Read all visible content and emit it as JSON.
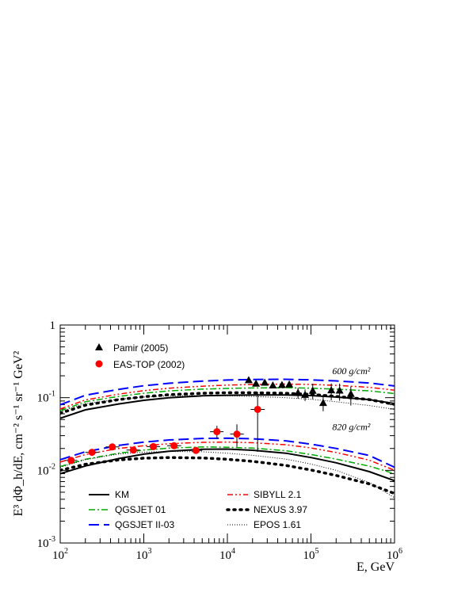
{
  "chart_data": {
    "type": "line",
    "xlabel": "E, GeV",
    "ylabel": "E³ dΦ_h/dE,  cm⁻² s⁻¹ sr⁻¹ GeV²",
    "x_scale": "log",
    "y_scale": "log",
    "xlim": [
      100,
      1000000
    ],
    "ylim": [
      0.001,
      1
    ],
    "x_ticks": [
      {
        "value": 100,
        "base": "10",
        "exp": "2"
      },
      {
        "value": 1000,
        "base": "10",
        "exp": "3"
      },
      {
        "value": 10000,
        "base": "10",
        "exp": "4"
      },
      {
        "value": 100000,
        "base": "10",
        "exp": "5"
      },
      {
        "value": 1000000,
        "base": "10",
        "exp": "6"
      }
    ],
    "y_ticks": [
      {
        "value": 0.001,
        "base": "10",
        "exp": "-3"
      },
      {
        "value": 0.01,
        "base": "10",
        "exp": "-2"
      },
      {
        "value": 0.1,
        "base": "10",
        "exp": "-1"
      },
      {
        "value": 1,
        "base": "1",
        "exp": ""
      }
    ],
    "annotations": [
      {
        "text": "600 g/cm²",
        "x": 180000,
        "y": 0.21
      },
      {
        "text": "820 g/cm²",
        "x": 180000,
        "y": 0.036
      }
    ],
    "legend": {
      "markers": [
        {
          "name": "Pamir (2005)",
          "symbol": "triangle",
          "color": "#000000"
        },
        {
          "name": "EAS-TOP (2002)",
          "symbol": "circle",
          "color": "#ff0000"
        }
      ],
      "lines": [
        {
          "name": "KM",
          "color": "#000000",
          "dash": "solid",
          "width": 2
        },
        {
          "name": "QGSJET 01",
          "color": "#00aa00",
          "dash": "8,3,2,3",
          "width": 1.5
        },
        {
          "name": "QGSJET II-03",
          "color": "#0000ff",
          "dash": "13,6",
          "width": 2
        },
        {
          "name": "SIBYLL 2.1",
          "color": "#ff0000",
          "dash": "7,3,2,3,2,3",
          "width": 1.5
        },
        {
          "name": "NEXUS 3.97",
          "color": "#000000",
          "dash": "2,6",
          "width": 3.5
        },
        {
          "name": "EPOS 1.61",
          "color": "#000000",
          "dash": "1,2",
          "width": 1
        }
      ]
    },
    "x_grid": [
      100,
      200,
      500,
      1000,
      2000,
      5000,
      10000,
      20000,
      50000,
      100000,
      200000,
      500000,
      1000000
    ],
    "series": [
      {
        "group": "600",
        "style": "KM",
        "values": [
          0.052,
          0.068,
          0.082,
          0.092,
          0.1,
          0.106,
          0.108,
          0.109,
          0.109,
          0.107,
          0.102,
          0.094,
          0.083
        ]
      },
      {
        "group": "600",
        "style": "QGSJET 01",
        "values": [
          0.066,
          0.088,
          0.104,
          0.115,
          0.124,
          0.131,
          0.134,
          0.136,
          0.137,
          0.135,
          0.131,
          0.124,
          0.114
        ]
      },
      {
        "group": "600",
        "style": "QGSJET II-03",
        "values": [
          0.08,
          0.108,
          0.13,
          0.146,
          0.158,
          0.169,
          0.175,
          0.178,
          0.179,
          0.176,
          0.17,
          0.159,
          0.145
        ]
      },
      {
        "group": "600",
        "style": "SIBYLL 2.1",
        "values": [
          0.07,
          0.093,
          0.112,
          0.125,
          0.135,
          0.144,
          0.149,
          0.152,
          0.154,
          0.152,
          0.148,
          0.139,
          0.127
        ]
      },
      {
        "group": "600",
        "style": "NEXUS 3.97",
        "values": [
          0.061,
          0.079,
          0.094,
          0.103,
          0.11,
          0.115,
          0.117,
          0.117,
          0.115,
          0.111,
          0.104,
          0.094,
          0.081
        ]
      },
      {
        "group": "600",
        "style": "EPOS 1.61",
        "values": [
          0.064,
          0.083,
          0.095,
          0.102,
          0.106,
          0.107,
          0.106,
          0.104,
          0.1,
          0.095,
          0.088,
          0.078,
          0.069
        ]
      },
      {
        "group": "820",
        "style": "KM",
        "values": [
          0.009,
          0.0115,
          0.0145,
          0.0167,
          0.0183,
          0.0195,
          0.0196,
          0.0189,
          0.0172,
          0.015,
          0.0127,
          0.0096,
          0.0072
        ]
      },
      {
        "group": "820",
        "style": "QGSJET 01",
        "values": [
          0.0113,
          0.0142,
          0.0172,
          0.019,
          0.0202,
          0.021,
          0.0208,
          0.0202,
          0.0186,
          0.0165,
          0.0143,
          0.0114,
          0.009
        ]
      },
      {
        "group": "820",
        "style": "QGSJET II-03",
        "values": [
          0.014,
          0.018,
          0.022,
          0.0245,
          0.0262,
          0.0275,
          0.0277,
          0.0272,
          0.0255,
          0.0229,
          0.02,
          0.016,
          0.011
        ]
      },
      {
        "group": "820",
        "style": "SIBYLL 2.1",
        "values": [
          0.013,
          0.0165,
          0.02,
          0.0218,
          0.0232,
          0.0243,
          0.0245,
          0.024,
          0.0225,
          0.0203,
          0.0176,
          0.0138,
          0.01
        ]
      },
      {
        "group": "820",
        "style": "NEXUS 3.97",
        "values": [
          0.01,
          0.0121,
          0.0139,
          0.0147,
          0.015,
          0.0148,
          0.0142,
          0.0133,
          0.0117,
          0.0101,
          0.0085,
          0.0065,
          0.0048
        ]
      },
      {
        "group": "820",
        "style": "EPOS 1.61",
        "values": [
          0.011,
          0.014,
          0.0168,
          0.0178,
          0.0182,
          0.018,
          0.0172,
          0.0161,
          0.0143,
          0.0122,
          0.01,
          0.0068,
          0.0042
        ]
      }
    ],
    "data_points": {
      "pamir": [
        {
          "x": 18000,
          "y": 0.175
        },
        {
          "x": 22000,
          "y": 0.157
        },
        {
          "x": 28000,
          "y": 0.162
        },
        {
          "x": 35000,
          "y": 0.148
        },
        {
          "x": 45000,
          "y": 0.15
        },
        {
          "x": 55000,
          "y": 0.153
        },
        {
          "x": 70000,
          "y": 0.117,
          "yerr_lo": 0.02,
          "yerr_hi": 0.02
        },
        {
          "x": 85000,
          "y": 0.11,
          "yerr_lo": 0.02,
          "yerr_hi": 0.02
        },
        {
          "x": 105000,
          "y": 0.125,
          "yerr_lo": 0.03,
          "yerr_hi": 0.03
        },
        {
          "x": 140000,
          "y": 0.085,
          "yerr_lo": 0.02,
          "yerr_hi": 0.025
        },
        {
          "x": 175000,
          "y": 0.127,
          "yerr_lo": 0.035,
          "yerr_hi": 0.03
        },
        {
          "x": 220000,
          "y": 0.126,
          "yerr_lo": 0.035,
          "yerr_hi": 0.03
        },
        {
          "x": 300000,
          "y": 0.113,
          "yerr_lo": 0.035,
          "yerr_hi": 0.03
        }
      ],
      "eastop": [
        {
          "x": 135,
          "y": 0.0137,
          "xlo": 115,
          "xhi": 160
        },
        {
          "x": 240,
          "y": 0.0177,
          "xlo": 200,
          "xhi": 290
        },
        {
          "x": 420,
          "y": 0.021,
          "xlo": 350,
          "xhi": 510
        },
        {
          "x": 750,
          "y": 0.019,
          "xlo": 620,
          "xhi": 900
        },
        {
          "x": 1300,
          "y": 0.0212,
          "xlo": 1080,
          "xhi": 1570
        },
        {
          "x": 2300,
          "y": 0.0218,
          "xlo": 1900,
          "xhi": 2800
        },
        {
          "x": 4200,
          "y": 0.0188,
          "xlo": 3500,
          "xhi": 5000
        },
        {
          "x": 7500,
          "y": 0.034,
          "xlo": 6200,
          "xhi": 9000,
          "ylo": 0.027,
          "yhi": 0.041
        },
        {
          "x": 13000,
          "y": 0.0315,
          "xlo": 10800,
          "xhi": 15700,
          "ylo": 0.021,
          "yhi": 0.043
        },
        {
          "x": 23000,
          "y": 0.069,
          "xlo": 19000,
          "xhi": 28000,
          "ylo": 0.018,
          "yhi": 0.12
        }
      ]
    }
  }
}
